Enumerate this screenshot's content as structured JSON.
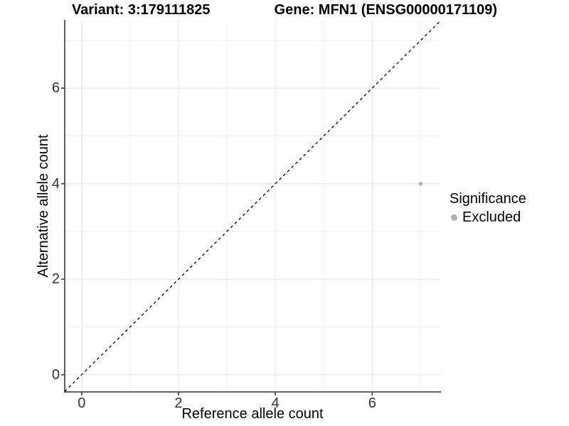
{
  "chart_data": {
    "type": "scatter",
    "titles": {
      "left": "Variant: 3:179111825",
      "right": "Gene: MFN1 (ENSG00000171109)"
    },
    "xlabel": "Reference allele count",
    "ylabel": "Alternative allele count",
    "xlim": [
      -0.35,
      7.42
    ],
    "ylim": [
      -0.36,
      7.43
    ],
    "xticks": [
      0,
      2,
      4,
      6
    ],
    "yticks": [
      0,
      2,
      4,
      6
    ],
    "minor_gridlines_x": [
      1,
      3,
      5,
      7
    ],
    "minor_gridlines_y": [
      1,
      3,
      5,
      7
    ],
    "grid": true,
    "legend_position": "right",
    "legend": {
      "title": "Significance",
      "entries": [
        {
          "label": "Excluded",
          "color": "#b0b0b0"
        }
      ]
    },
    "series": [
      {
        "name": "Excluded",
        "color": "#b3b3b3",
        "points": [
          {
            "x": 7,
            "y": 4
          }
        ]
      }
    ],
    "reference_line": {
      "type": "identity",
      "linetype": "dashed",
      "color": "#000000",
      "description": "y = x dashed diagonal"
    }
  },
  "colors": {
    "background": "#ffffff",
    "grid_major": "#e3e3e3",
    "grid_minor": "#efefef",
    "axis_line": "#4d4d4d",
    "tick_label": "#333333",
    "title_text": "#000000"
  }
}
